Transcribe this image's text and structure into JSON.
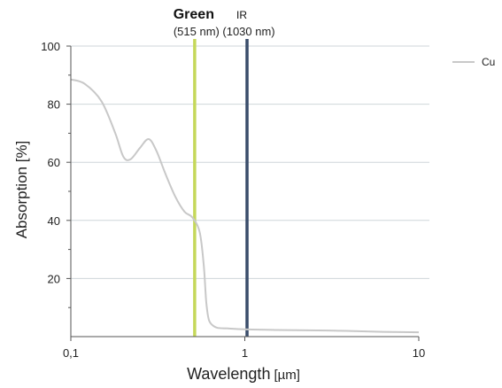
{
  "chart_data": {
    "type": "line",
    "xlabel": "Wavelength",
    "xlabel_unit": "[µm]",
    "ylabel": "Absorption [%]",
    "x_scale": "log",
    "xlim": [
      0.1,
      10
    ],
    "ylim": [
      0,
      100
    ],
    "x_ticks": [
      {
        "value": 0.1,
        "label": "0,1"
      },
      {
        "value": 1,
        "label": "1"
      },
      {
        "value": 10,
        "label": "10"
      }
    ],
    "y_ticks": [
      {
        "value": 20,
        "label": "20"
      },
      {
        "value": 40,
        "label": "40"
      },
      {
        "value": 60,
        "label": "60"
      },
      {
        "value": 80,
        "label": "80"
      },
      {
        "value": 100,
        "label": "100"
      }
    ],
    "grid": "horizontal",
    "legend_position": "top-right",
    "series": [
      {
        "name": "Cu",
        "color": "#c8c8c8",
        "x": [
          0.1,
          0.12,
          0.15,
          0.18,
          0.2,
          0.22,
          0.25,
          0.28,
          0.31,
          0.35,
          0.4,
          0.45,
          0.5,
          0.55,
          0.58,
          0.6,
          0.62,
          0.65,
          0.7,
          0.8,
          1.0,
          1.5,
          2,
          3,
          5,
          7,
          10
        ],
        "y": [
          88.5,
          87,
          81,
          70,
          62,
          61,
          65,
          68,
          64,
          56,
          48,
          43,
          41,
          36,
          25,
          12,
          6,
          4,
          3,
          2.8,
          2.5,
          2.3,
          2.2,
          2.1,
          1.8,
          1.6,
          1.5
        ]
      }
    ],
    "markers": [
      {
        "name": "Green",
        "sub": "(515 nm)",
        "x": 0.515,
        "color": "#c5d85a",
        "bold": true
      },
      {
        "name": "IR",
        "sub": "(1030 nm)",
        "x": 1.03,
        "color": "#3a4d6b",
        "bold": false
      }
    ]
  }
}
